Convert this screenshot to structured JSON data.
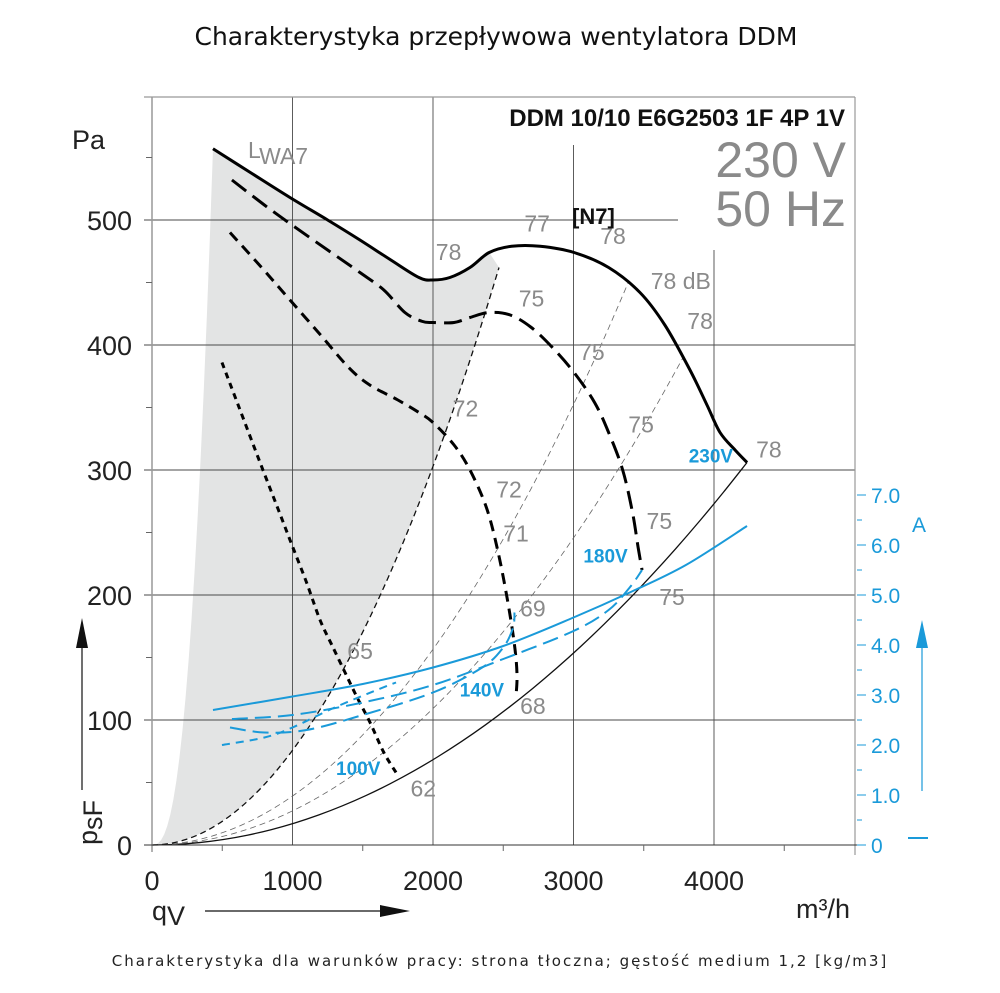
{
  "chart_data": {
    "type": "line",
    "title": "Charakterystyka przepływowa wentylatora DDM",
    "footnote": "Charakterystyka dla warunków pracy: strona tłoczna; gęstość medium 1,2 [kg/m3]",
    "model": "DDM 10/10 E6G2503 1F 4P 1V",
    "voltage": "230 V",
    "frequency": "50 Hz",
    "curve_tag": "[N7]",
    "lwa_label": "L",
    "lwa_sub": "WA7",
    "xlabel": "q",
    "xlabel_sub": "V",
    "xunit": "m³/h",
    "ylabel": "p",
    "ylabel_sub": "sF",
    "yunit": "Pa",
    "y2unit": "A",
    "xlim": [
      0,
      5000
    ],
    "ylim": [
      0,
      600
    ],
    "y2lim": [
      0,
      7.0
    ],
    "x_ticks": [
      {
        "value": 0,
        "label": "0"
      },
      {
        "value": 1000,
        "label": "1000"
      },
      {
        "value": 2000,
        "label": "2000"
      },
      {
        "value": 3000,
        "label": "3000"
      },
      {
        "value": 4000,
        "label": "4000"
      }
    ],
    "y_ticks": [
      {
        "value": 0,
        "label": "0"
      },
      {
        "value": 100,
        "label": "100"
      },
      {
        "value": 200,
        "label": "200"
      },
      {
        "value": 300,
        "label": "300"
      },
      {
        "value": 400,
        "label": "400"
      },
      {
        "value": 500,
        "label": "500"
      }
    ],
    "y2_ticks": [
      {
        "value": 0,
        "label": "0"
      },
      {
        "value": 1.0,
        "label": "1.0"
      },
      {
        "value": 2.0,
        "label": "2.0"
      },
      {
        "value": 3.0,
        "label": "3.0"
      },
      {
        "value": 4.0,
        "label": "4.0"
      },
      {
        "value": 5.0,
        "label": "5.0"
      },
      {
        "value": 6.0,
        "label": "6.0"
      },
      {
        "value": 7.0,
        "label": "7.0"
      }
    ],
    "grid": true,
    "colors": {
      "pressure": "#000000",
      "current": "#1a9ad9",
      "lwa_region": "#e3e4e4",
      "db_label": "#8a8a8a",
      "grid": "#555555"
    },
    "series": [
      {
        "name": "230V",
        "kind": "pressure",
        "style": "solid",
        "points": [
          [
            434,
            557
          ],
          [
            700,
            538
          ],
          [
            982,
            518
          ],
          [
            1250,
            500
          ],
          [
            1480,
            484
          ],
          [
            1700,
            468
          ],
          [
            1900,
            454
          ],
          [
            2000,
            452
          ],
          [
            2120,
            454
          ],
          [
            2263,
            462
          ],
          [
            2400,
            474
          ],
          [
            2560,
            479
          ],
          [
            2762,
            479
          ],
          [
            3004,
            474
          ],
          [
            3250,
            462
          ],
          [
            3473,
            442
          ],
          [
            3650,
            416
          ],
          [
            3829,
            380
          ],
          [
            3950,
            352
          ],
          [
            4043,
            330
          ],
          [
            4150,
            316
          ],
          [
            4235,
            306
          ]
        ]
      },
      {
        "name": "180V",
        "kind": "pressure",
        "style": "dashed",
        "points": [
          [
            569,
            532
          ],
          [
            800,
            512
          ],
          [
            996,
            496
          ],
          [
            1250,
            476
          ],
          [
            1480,
            458
          ],
          [
            1650,
            444
          ],
          [
            1800,
            426
          ],
          [
            1920,
            419
          ],
          [
            2000,
            418
          ],
          [
            2150,
            418
          ],
          [
            2263,
            422
          ],
          [
            2400,
            426
          ],
          [
            2550,
            424
          ],
          [
            2700,
            414
          ],
          [
            2850,
            398
          ],
          [
            3004,
            378
          ],
          [
            3150,
            354
          ],
          [
            3250,
            330
          ],
          [
            3350,
            300
          ],
          [
            3420,
            266
          ],
          [
            3460,
            238
          ],
          [
            3488,
            220
          ]
        ]
      },
      {
        "name": "140V",
        "kind": "pressure",
        "style": "dashed",
        "points": [
          [
            555,
            490
          ],
          [
            780,
            462
          ],
          [
            982,
            436
          ],
          [
            1200,
            408
          ],
          [
            1400,
            382
          ],
          [
            1550,
            368
          ],
          [
            1750,
            356
          ],
          [
            1900,
            346
          ],
          [
            2000,
            338
          ],
          [
            2150,
            320
          ],
          [
            2263,
            300
          ],
          [
            2380,
            270
          ],
          [
            2460,
            236
          ],
          [
            2530,
            196
          ],
          [
            2580,
            160
          ],
          [
            2598,
            136
          ],
          [
            2590,
            118
          ]
        ]
      },
      {
        "name": "100V",
        "kind": "pressure",
        "style": "dotted",
        "points": [
          [
            498,
            386
          ],
          [
            620,
            350
          ],
          [
            769,
            306
          ],
          [
            900,
            268
          ],
          [
            996,
            240
          ],
          [
            1100,
            210
          ],
          [
            1196,
            180
          ],
          [
            1280,
            160
          ],
          [
            1374,
            138
          ],
          [
            1460,
            118
          ],
          [
            1552,
            98
          ],
          [
            1650,
            74
          ],
          [
            1737,
            58
          ]
        ]
      },
      {
        "name": "230V current",
        "kind": "current",
        "style": "solid",
        "points": [
          [
            434,
            2.7
          ],
          [
            1000,
            2.97
          ],
          [
            1500,
            3.22
          ],
          [
            2000,
            3.55
          ],
          [
            2500,
            3.98
          ],
          [
            3000,
            4.55
          ],
          [
            3400,
            5.05
          ],
          [
            3800,
            5.6
          ],
          [
            4235,
            6.38
          ]
        ]
      },
      {
        "name": "180V current",
        "kind": "current",
        "style": "dashed",
        "points": [
          [
            569,
            2.52
          ],
          [
            1000,
            2.6
          ],
          [
            1500,
            2.85
          ],
          [
            2000,
            3.2
          ],
          [
            2500,
            3.72
          ],
          [
            3000,
            4.28
          ],
          [
            3250,
            4.7
          ],
          [
            3400,
            5.15
          ],
          [
            3488,
            5.5
          ]
        ]
      },
      {
        "name": "140V current",
        "kind": "current",
        "style": "dashed",
        "points": [
          [
            555,
            2.35
          ],
          [
            800,
            2.25
          ],
          [
            1100,
            2.3
          ],
          [
            1500,
            2.6
          ],
          [
            2000,
            3.05
          ],
          [
            2350,
            3.55
          ],
          [
            2500,
            3.95
          ],
          [
            2570,
            4.35
          ],
          [
            2580,
            4.65
          ]
        ]
      },
      {
        "name": "100V current",
        "kind": "current",
        "style": "dotted",
        "points": [
          [
            498,
            2.0
          ],
          [
            800,
            2.15
          ],
          [
            1000,
            2.35
          ],
          [
            1300,
            2.75
          ],
          [
            1600,
            3.1
          ],
          [
            1737,
            3.25
          ]
        ]
      }
    ],
    "system_curves": [
      {
        "style": "solid-thin",
        "end": [
          4235,
          306
        ],
        "exp": 2
      },
      {
        "style": "dashed-thin",
        "end": [
          3780,
          390
        ],
        "exp": 2
      },
      {
        "style": "dashed-thin",
        "end": [
          3390,
          450
        ],
        "exp": 2
      },
      {
        "style": "dashed-medium",
        "end": [
          2470,
          462
        ],
        "exp": 2
      }
    ],
    "db_labels": [
      {
        "text": "78",
        "q": 2020,
        "p": 468
      },
      {
        "text": "77",
        "q": 2650,
        "p": 491
      },
      {
        "text": "78",
        "q": 3190,
        "p": 481
      },
      {
        "text": "78 dB",
        "q": 3550,
        "p": 445
      },
      {
        "text": "78",
        "q": 3810,
        "p": 413
      },
      {
        "text": "78",
        "q": 4300,
        "p": 310
      },
      {
        "text": "75",
        "q": 2610,
        "p": 431
      },
      {
        "text": "75",
        "q": 3040,
        "p": 388
      },
      {
        "text": "75",
        "q": 3390,
        "p": 330
      },
      {
        "text": "75",
        "q": 3520,
        "p": 253
      },
      {
        "text": "75",
        "q": 3610,
        "p": 192
      },
      {
        "text": "72",
        "q": 2140,
        "p": 343
      },
      {
        "text": "72",
        "q": 2450,
        "p": 278
      },
      {
        "text": "71",
        "q": 2500,
        "p": 243
      },
      {
        "text": "69",
        "q": 2620,
        "p": 183
      },
      {
        "text": "68",
        "q": 2620,
        "p": 105
      },
      {
        "text": "65",
        "q": 1390,
        "p": 149
      },
      {
        "text": "62",
        "q": 1840,
        "p": 39
      }
    ],
    "voltage_labels": [
      {
        "text": "230V",
        "q": 3820,
        "p": 306
      },
      {
        "text": "180V",
        "q": 3070,
        "p": 226
      },
      {
        "text": "140V",
        "q": 2190,
        "p": 119
      },
      {
        "text": "100V",
        "q": 1310,
        "p": 56
      }
    ]
  }
}
